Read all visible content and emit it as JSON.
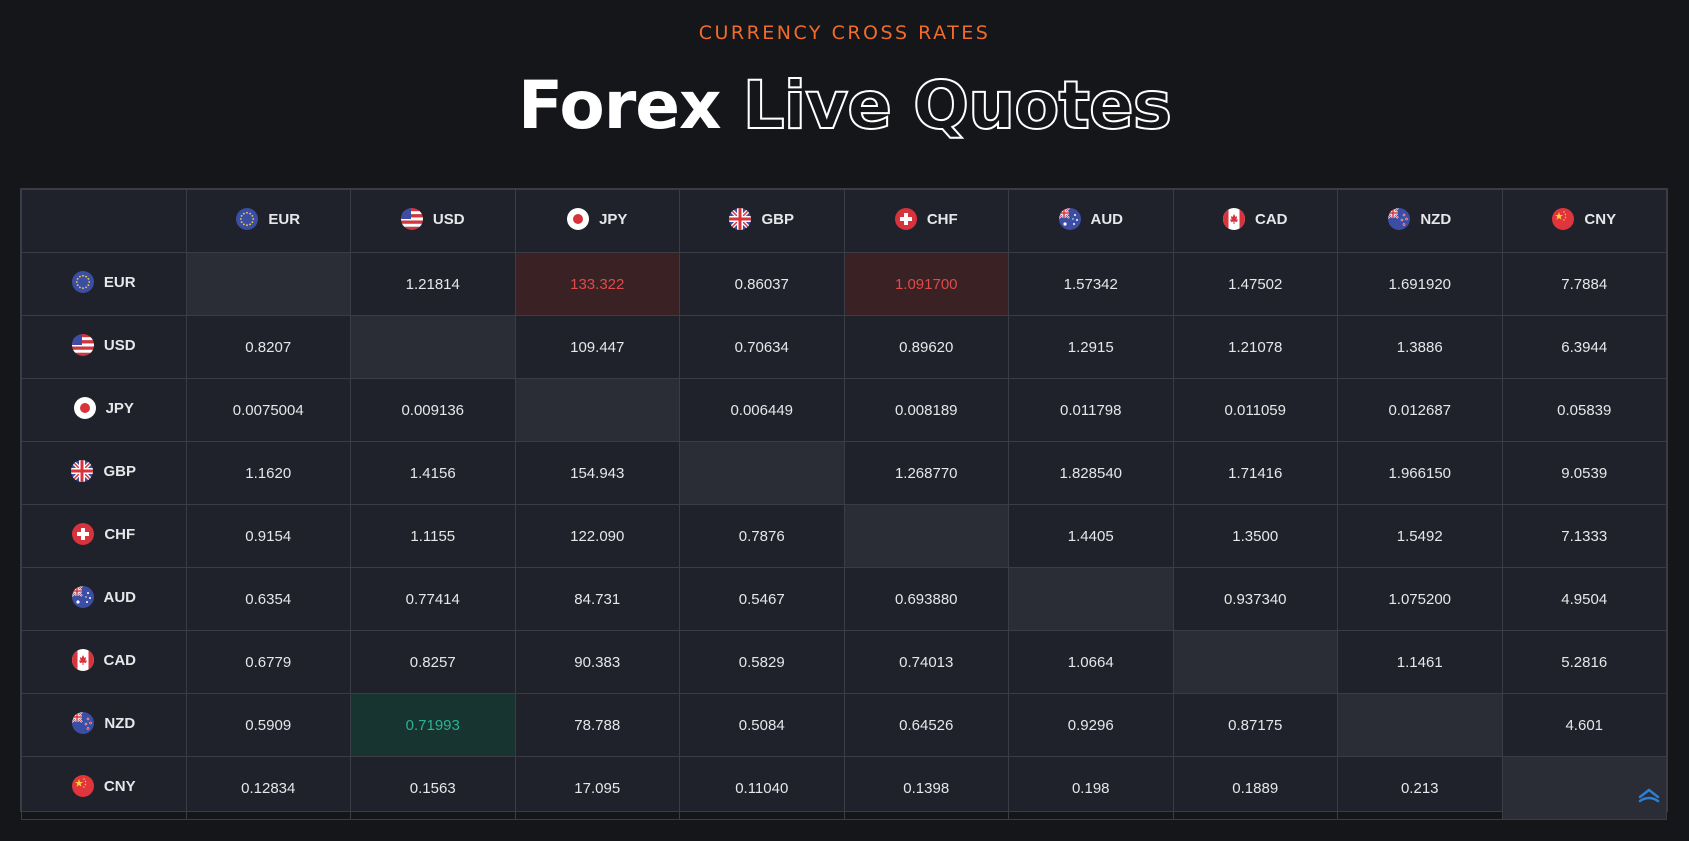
{
  "header": {
    "eyebrow": "CURRENCY CROSS RATES",
    "title_solid": "Forex",
    "title_outline": "Live Quotes"
  },
  "currencies": [
    {
      "code": "EUR",
      "icon": "eu-flag-icon"
    },
    {
      "code": "USD",
      "icon": "us-flag-icon"
    },
    {
      "code": "JPY",
      "icon": "japan-flag-icon"
    },
    {
      "code": "GBP",
      "icon": "uk-flag-icon"
    },
    {
      "code": "CHF",
      "icon": "swiss-flag-icon"
    },
    {
      "code": "AUD",
      "icon": "australia-flag-icon"
    },
    {
      "code": "CAD",
      "icon": "canada-flag-icon"
    },
    {
      "code": "NZD",
      "icon": "new-zealand-flag-icon"
    },
    {
      "code": "CNY",
      "icon": "china-flag-icon"
    }
  ],
  "rows": [
    {
      "code": "EUR",
      "cells": [
        "",
        "1.21814",
        "133.322",
        "0.86037",
        "1.091700",
        "1.57342",
        "1.47502",
        "1.691920",
        "7.7884"
      ]
    },
    {
      "code": "USD",
      "cells": [
        "0.8207",
        "",
        "109.447",
        "0.70634",
        "0.89620",
        "1.2915",
        "1.21078",
        "1.3886",
        "6.3944"
      ]
    },
    {
      "code": "JPY",
      "cells": [
        "0.0075004",
        "0.009136",
        "",
        "0.006449",
        "0.008189",
        "0.011798",
        "0.011059",
        "0.012687",
        "0.05839"
      ]
    },
    {
      "code": "GBP",
      "cells": [
        "1.1620",
        "1.4156",
        "154.943",
        "",
        "1.268770",
        "1.828540",
        "1.71416",
        "1.966150",
        "9.0539"
      ]
    },
    {
      "code": "CHF",
      "cells": [
        "0.9154",
        "1.1155",
        "122.090",
        "0.7876",
        "",
        "1.4405",
        "1.3500",
        "1.5492",
        "7.1333"
      ]
    },
    {
      "code": "AUD",
      "cells": [
        "0.6354",
        "0.77414",
        "84.731",
        "0.5467",
        "0.693880",
        "",
        "0.937340",
        "1.075200",
        "4.9504"
      ]
    },
    {
      "code": "CAD",
      "cells": [
        "0.6779",
        "0.8257",
        "90.383",
        "0.5829",
        "0.74013",
        "1.0664",
        "",
        "1.1461",
        "5.2816"
      ]
    },
    {
      "code": "NZD",
      "cells": [
        "0.5909",
        "0.71993",
        "78.788",
        "0.5084",
        "0.64526",
        "0.9296",
        "0.87175",
        "",
        "4.601"
      ]
    },
    {
      "code": "CNY",
      "cells": [
        "0.12834",
        "0.1563",
        "17.095",
        "0.11040",
        "0.1398",
        "0.198",
        "0.1889",
        "0.213",
        ""
      ]
    }
  ],
  "highlights": [
    {
      "row": 0,
      "col": 2,
      "state": "down"
    },
    {
      "row": 0,
      "col": 4,
      "state": "down"
    },
    {
      "row": 7,
      "col": 1,
      "state": "up"
    }
  ],
  "colors": {
    "accent": "#f26b2a",
    "down_text": "#e04a4a",
    "up_text": "#2ab392"
  },
  "scroll_icon": "scroll-to-top-icon"
}
